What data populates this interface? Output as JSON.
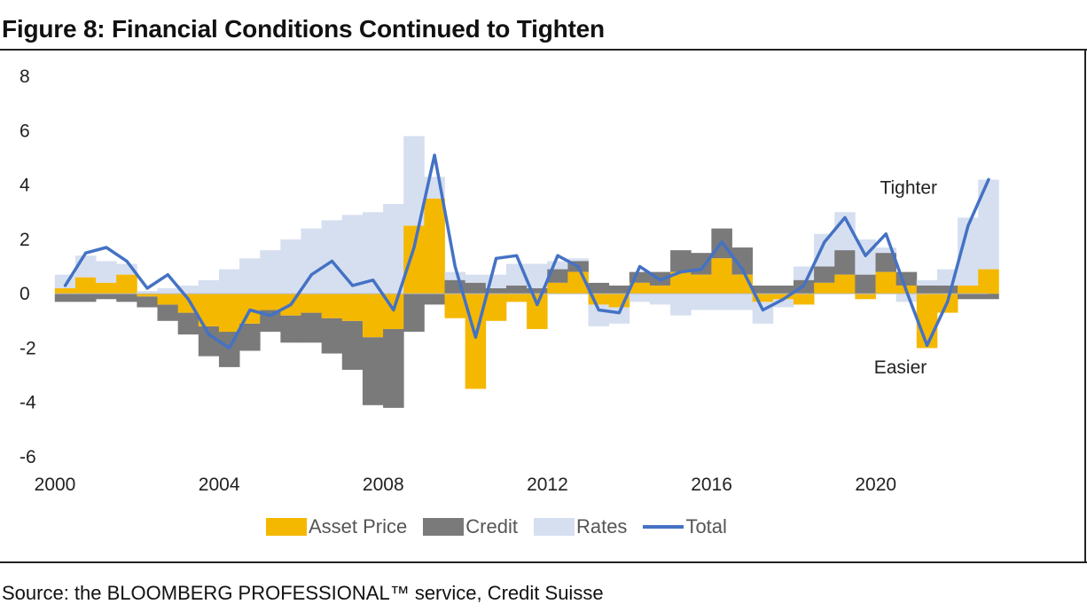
{
  "title": "Figure 8: Financial Conditions Continued to Tighten",
  "source": "Source: the BLOOMBERG PROFESSIONAL™ service, Credit Suisse",
  "colors": {
    "asset_price": "#f5b800",
    "credit": "#7a7a7a",
    "rates": "#d6dff0",
    "total": "#4472c4"
  },
  "chart_data": {
    "type": "area",
    "title": "Figure 8: Financial Conditions Continued to Tighten",
    "xlabel": "",
    "ylabel": "",
    "xlim": [
      2000,
      2022.75
    ],
    "ylim": [
      -6,
      8
    ],
    "yticks": [
      -6,
      -4,
      -2,
      0,
      2,
      4,
      6,
      8
    ],
    "xticks": [
      2000,
      2004,
      2008,
      2012,
      2016,
      2020
    ],
    "grid": false,
    "legend_position": "bottom",
    "annotations": [
      {
        "text": "Tighter",
        "x": 2020.8,
        "y": 3.9
      },
      {
        "text": "Easier",
        "x": 2020.6,
        "y": -2.7
      }
    ],
    "x": [
      2000,
      2000.5,
      2001,
      2001.5,
      2002,
      2002.5,
      2003,
      2003.5,
      2004,
      2004.5,
      2005,
      2005.5,
      2006,
      2006.5,
      2007,
      2007.5,
      2008,
      2008.5,
      2009,
      2009.5,
      2010,
      2010.5,
      2011,
      2011.5,
      2012,
      2012.5,
      2013,
      2013.5,
      2014,
      2014.5,
      2015,
      2015.5,
      2016,
      2016.5,
      2017,
      2017.5,
      2018,
      2018.5,
      2019,
      2019.5,
      2020,
      2020.5,
      2021,
      2021.5,
      2022,
      2022.5
    ],
    "series": [
      {
        "name": "Asset Price",
        "kind": "bar",
        "values": [
          0.2,
          0.6,
          0.4,
          0.7,
          -0.1,
          -0.4,
          -0.7,
          -1.2,
          -1.4,
          -1.1,
          -0.6,
          -0.8,
          -0.7,
          -0.9,
          -1.0,
          -1.6,
          -1.3,
          2.5,
          3.5,
          -0.9,
          -3.5,
          -1.0,
          -0.3,
          -1.3,
          0.4,
          0.8,
          -0.4,
          -0.5,
          0.4,
          0.3,
          0.8,
          0.7,
          1.3,
          0.7,
          -0.3,
          -0.2,
          -0.4,
          0.4,
          0.7,
          -0.2,
          0.8,
          0.3,
          -2.0,
          -0.7,
          0.3,
          0.9
        ]
      },
      {
        "name": "Credit",
        "kind": "bar",
        "values": [
          -0.3,
          -0.3,
          -0.2,
          -0.3,
          -0.4,
          -0.6,
          -0.8,
          -1.1,
          -1.3,
          -1.0,
          -0.8,
          -1.0,
          -1.1,
          -1.3,
          -1.8,
          -2.5,
          -2.9,
          -1.4,
          -0.4,
          0.5,
          0.4,
          0.2,
          0.3,
          0.2,
          0.5,
          0.4,
          0.4,
          0.3,
          0.4,
          0.5,
          0.8,
          0.8,
          1.1,
          1.0,
          0.3,
          0.3,
          0.5,
          0.6,
          0.9,
          0.7,
          0.7,
          0.5,
          0.3,
          0.3,
          -0.2,
          -0.2
        ]
      },
      {
        "name": "Rates",
        "kind": "bar",
        "values": [
          0.5,
          0.8,
          0.8,
          0.4,
          0.1,
          0.2,
          0.3,
          0.5,
          0.9,
          1.3,
          1.6,
          2.0,
          2.4,
          2.7,
          2.9,
          3.0,
          3.3,
          3.3,
          0.8,
          0.3,
          0.3,
          0.5,
          0.8,
          0.9,
          0.3,
          0.1,
          -0.8,
          -0.6,
          -0.3,
          -0.4,
          -0.8,
          -0.6,
          -0.6,
          -0.6,
          -0.8,
          -0.3,
          0.5,
          1.2,
          1.4,
          1.3,
          0.2,
          -0.3,
          0.2,
          0.6,
          2.5,
          3.3
        ]
      },
      {
        "name": "Total",
        "kind": "line",
        "values": [
          0.3,
          1.5,
          1.7,
          1.2,
          0.2,
          0.7,
          -0.2,
          -1.5,
          -2.0,
          -0.6,
          -0.8,
          -0.4,
          0.7,
          1.2,
          0.3,
          0.5,
          -0.6,
          1.7,
          5.1,
          1.0,
          -1.6,
          1.3,
          1.4,
          -0.4,
          1.4,
          1.0,
          -0.6,
          -0.7,
          1.0,
          0.5,
          0.8,
          0.9,
          1.9,
          0.9,
          -0.6,
          -0.2,
          0.3,
          1.9,
          2.8,
          1.4,
          2.2,
          0.1,
          -1.9,
          -0.3,
          2.5,
          4.2
        ]
      }
    ]
  },
  "legend": [
    {
      "label": "Asset Price",
      "kind": "swatch",
      "color": "#f5b800"
    },
    {
      "label": "Credit",
      "kind": "swatch",
      "color": "#7a7a7a"
    },
    {
      "label": "Rates",
      "kind": "swatch",
      "color": "#d6dff0"
    },
    {
      "label": "Total",
      "kind": "line",
      "color": "#4472c4"
    }
  ]
}
